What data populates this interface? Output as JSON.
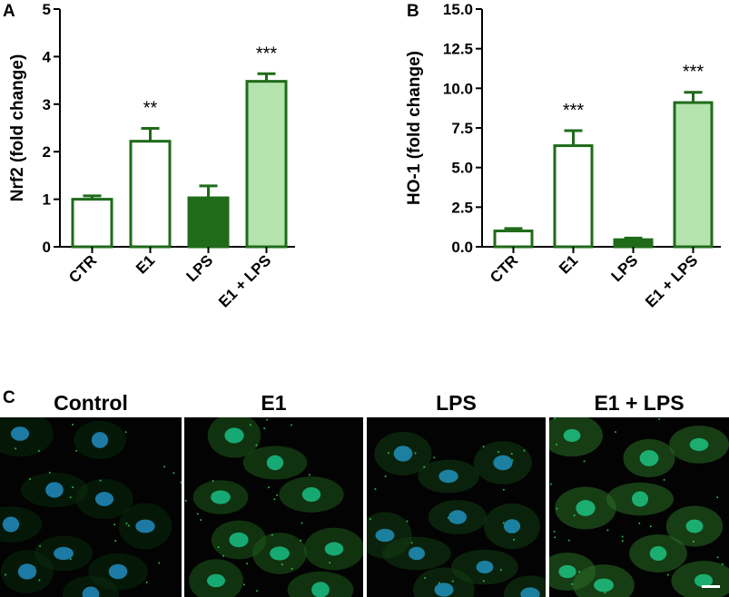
{
  "panels": {
    "a": {
      "letter": "A"
    },
    "b": {
      "letter": "B"
    },
    "c": {
      "letter": "C"
    }
  },
  "chart_data": [
    {
      "type": "bar",
      "ylabel": "Nrf2 (fold change)",
      "categories": [
        "CTR",
        "E1",
        "LPS",
        "E1 + LPS"
      ],
      "values": [
        1.0,
        2.22,
        1.03,
        3.48
      ],
      "errors": [
        0.07,
        0.27,
        0.25,
        0.16
      ],
      "significance": [
        "",
        "**",
        "",
        "***"
      ],
      "fills": [
        "#ffffff",
        "#ffffff",
        "#1f6b1a",
        "#b5e3ad"
      ],
      "stroke": "#1f6b1a",
      "ylim": [
        0,
        5
      ],
      "yticks": [
        "0",
        "1",
        "2",
        "3",
        "4",
        "5"
      ]
    },
    {
      "type": "bar",
      "ylabel": "HO-1 (fold change)",
      "categories": [
        "CTR",
        "E1",
        "LPS",
        "E1 + LPS"
      ],
      "values": [
        1.0,
        6.38,
        0.45,
        9.1
      ],
      "errors": [
        0.15,
        0.95,
        0.1,
        0.65
      ],
      "significance": [
        "",
        "***",
        "",
        "***"
      ],
      "fills": [
        "#ffffff",
        "#ffffff",
        "#1f6b1a",
        "#b5e3ad"
      ],
      "stroke": "#1f6b1a",
      "ylim": [
        0,
        15
      ],
      "yticks": [
        "0.0",
        "2.5",
        "5.0",
        "7.5",
        "10.0",
        "12.5",
        "15.0"
      ]
    }
  ],
  "microscopy": {
    "titles": [
      "Control",
      "E1",
      "LPS",
      "E1 + LPS"
    ],
    "nucleus_colors": [
      "#1e7fae",
      "#18b07a",
      "#1e86aa",
      "#1cb476"
    ],
    "cytoplasm_colors": [
      "#0a2a0d",
      "#1f5a1c",
      "#123d14",
      "#2a6e26"
    ],
    "scale_bar": true
  }
}
